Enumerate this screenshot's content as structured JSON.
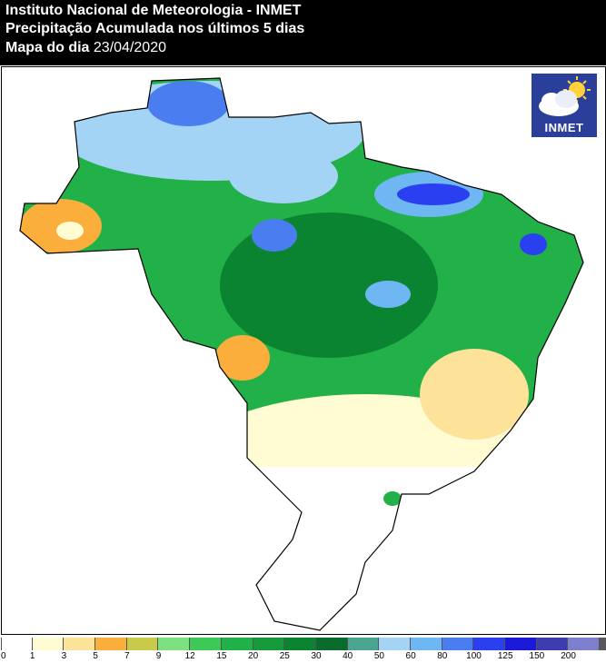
{
  "header": {
    "institution": "Instituto Nacional de Meteorologia - INMET",
    "product": "Precipitação Acumulada nos últimos 5 dias",
    "date_label": "Mapa do dia",
    "date_value": "23/04/2020"
  },
  "logo": {
    "text": "INMET",
    "icon": "sun-cloud-icon"
  },
  "legend": {
    "colors": [
      "#ffffff",
      "#fffbd2",
      "#fde39a",
      "#fcae3c",
      "#c9c94a",
      "#7ee07e",
      "#3ec957",
      "#22b048",
      "#169a3a",
      "#0b8432",
      "#0a6c2c",
      "#4aa590",
      "#a3d4f6",
      "#6fb7f3",
      "#4a7ef0",
      "#2a3ff0",
      "#1a1ad8",
      "#3d3db0",
      "#7e7ecf",
      "#595959"
    ],
    "ticks": [
      "0",
      "1",
      "3",
      "5",
      "7",
      "9",
      "12",
      "15",
      "20",
      "25",
      "30",
      "40",
      "50",
      "60",
      "80",
      "100",
      "125",
      "150",
      "200"
    ]
  }
}
